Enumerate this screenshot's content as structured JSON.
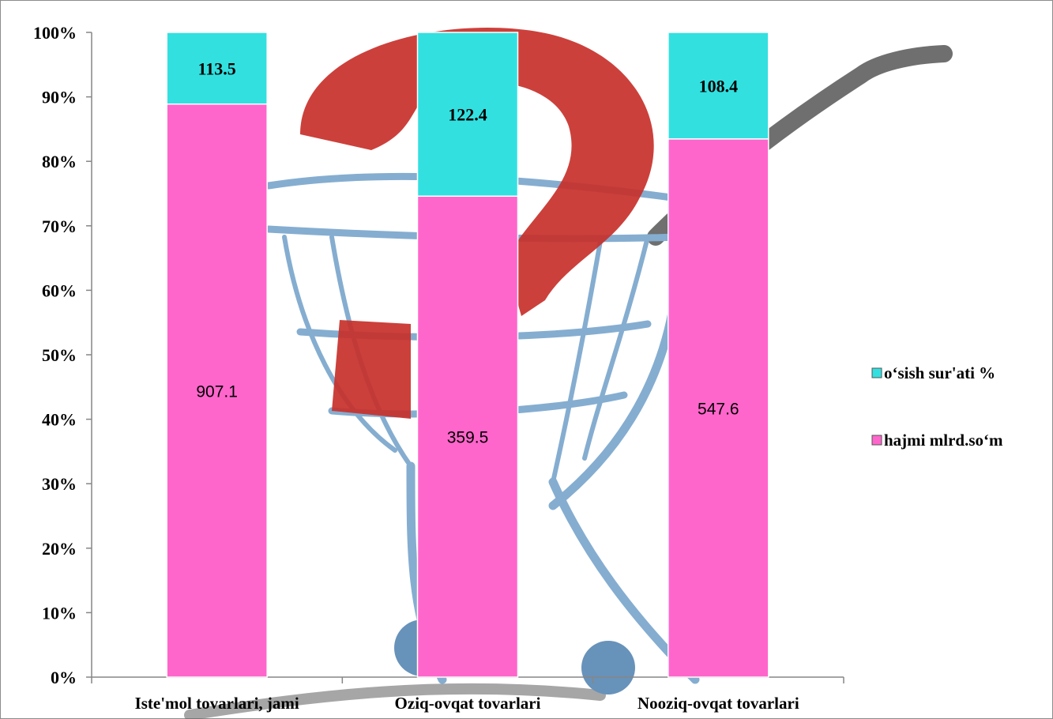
{
  "chart_data": {
    "type": "bar",
    "stacked": "percent",
    "categories": [
      "Iste'mol tovarlari, jami",
      "Oziq-ovqat tovarlari",
      "Nooziq-ovqat tovarlari"
    ],
    "series": [
      {
        "name": "hajmi mlrd.so‘m",
        "values": [
          907.1,
          359.5,
          547.6
        ],
        "color": "#ff66cc"
      },
      {
        "name": "o‘sish sur'ati %",
        "values": [
          113.5,
          122.4,
          108.4
        ],
        "color": "#33e0e0"
      }
    ],
    "y_ticks": [
      "0%",
      "10%",
      "20%",
      "30%",
      "40%",
      "50%",
      "60%",
      "70%",
      "80%",
      "90%",
      "100%"
    ],
    "ylim": [
      0,
      100
    ],
    "legend_position": "right",
    "grid": false
  }
}
